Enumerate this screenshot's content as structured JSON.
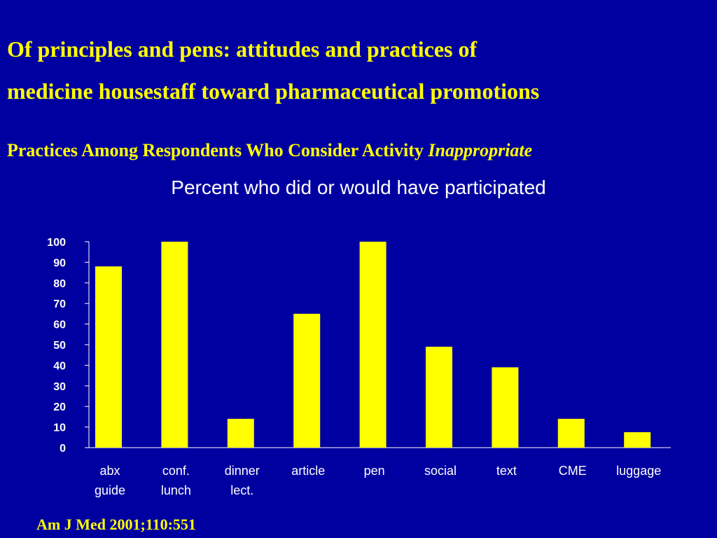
{
  "slide": {
    "title_line1": "Of principles and pens: attitudes and practices of",
    "title_line2": "medicine housestaff toward pharmaceutical promotions",
    "subtitle_main": "Practices Among Respondents Who Consider Activity ",
    "subtitle_emphasis": "Inappropriate",
    "citation": "Am J Med 2001;110:551"
  },
  "colors": {
    "background": "#0000a0",
    "title_text": "#ffff00",
    "chart_text": "#ffffff",
    "bar_fill": "#ffff00"
  },
  "chart_data": {
    "type": "bar",
    "title": "Percent who did or would have participated",
    "xlabel": "",
    "ylabel": "",
    "categories": [
      [
        "abx",
        "guide"
      ],
      [
        "conf.",
        "lunch"
      ],
      [
        "dinner",
        "lect."
      ],
      [
        "article"
      ],
      [
        "pen"
      ],
      [
        "social"
      ],
      [
        "text"
      ],
      [
        "CME"
      ],
      [
        "luggage"
      ]
    ],
    "values": [
      88,
      100,
      14,
      65,
      100,
      49,
      39,
      14,
      7.5
    ],
    "ylim": [
      0,
      100
    ],
    "yticks": [
      0,
      10,
      20,
      30,
      40,
      50,
      60,
      70,
      80,
      90,
      100
    ],
    "grid": false,
    "legend": "none"
  }
}
